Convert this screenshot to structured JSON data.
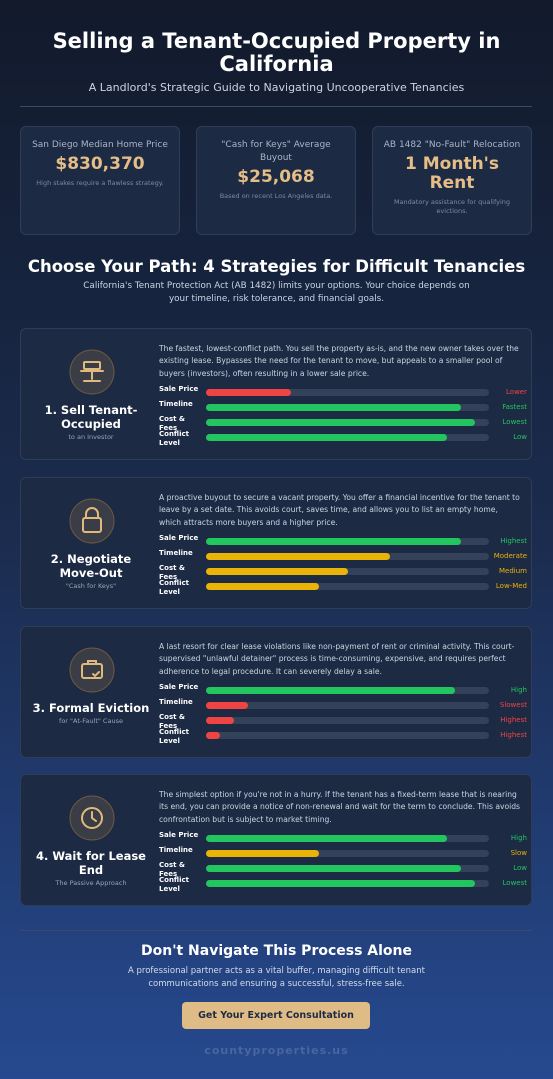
{
  "header": {
    "title": "Selling a Tenant-Occupied Property in California",
    "subtitle": "A Landlord's Strategic Guide to Navigating Uncooperative Tenancies"
  },
  "stats": [
    {
      "label": "San Diego Median Home Price",
      "value": "$830,370",
      "note": "High stakes require a flawless strategy."
    },
    {
      "label": "\"Cash for Keys\" Average Buyout",
      "value": "$25,068",
      "note": "Based on recent Los Angeles data."
    },
    {
      "label": "AB 1482 \"No-Fault\" Relocation",
      "value": "1 Month's Rent",
      "note": "Mandatory assistance for qualifying evictions."
    }
  ],
  "section": {
    "title": "Choose Your Path: 4 Strategies for Difficult Tenancies",
    "text": "California's Tenant Protection Act (AB 1482) limits your options. Your choice depends on your timeline, risk tolerance, and financial goals."
  },
  "strategies": [
    {
      "title": "1. Sell Tenant-Occupied",
      "subtitle": "to an Investor",
      "description": "The fastest, lowest-conflict path. You sell the property as-is, and the new owner takes over the existing lease. Bypasses the need for the tenant to move, but appeals to a smaller pool of buyers (investors), often resulting in a lower sale price.",
      "metrics": [
        {
          "name": "Sale Price",
          "rating": "Lower",
          "level": 30,
          "color": "#ef4444"
        },
        {
          "name": "Timeline",
          "rating": "Fastest",
          "level": 90,
          "color": "#22c55e"
        },
        {
          "name": "Cost & Fees",
          "rating": "Lowest",
          "level": 95,
          "color": "#22c55e"
        },
        {
          "name": "Conflict Level",
          "rating": "Low",
          "level": 85,
          "color": "#22c55e"
        }
      ]
    },
    {
      "title": "2. Negotiate Move-Out",
      "subtitle": "\"Cash for Keys\"",
      "description": "A proactive buyout to secure a vacant property. You offer a financial incentive for the tenant to leave by a set date. This avoids court, saves time, and allows you to list an empty home, which attracts more buyers and a higher price.",
      "metrics": [
        {
          "name": "Sale Price",
          "rating": "Highest",
          "level": 90,
          "color": "#22c55e"
        },
        {
          "name": "Timeline",
          "rating": "Moderate",
          "level": 65,
          "color": "#eab308"
        },
        {
          "name": "Cost & Fees",
          "rating": "Medium",
          "level": 50,
          "color": "#eab308"
        },
        {
          "name": "Conflict Level",
          "rating": "Low-Med",
          "level": 40,
          "color": "#eab308"
        }
      ]
    },
    {
      "title": "3. Formal Eviction",
      "subtitle": "for \"At-Fault\" Cause",
      "description": "A last resort for clear lease violations like non-payment of rent or criminal activity. This court-supervised \"unlawful detainer\" process is time-consuming, expensive, and requires perfect adherence to legal procedure. It can severely delay a sale.",
      "metrics": [
        {
          "name": "Sale Price",
          "rating": "High",
          "level": 88,
          "color": "#22c55e"
        },
        {
          "name": "Timeline",
          "rating": "Slowest",
          "level": 15,
          "color": "#ef4444"
        },
        {
          "name": "Cost & Fees",
          "rating": "Highest",
          "level": 10,
          "color": "#ef4444"
        },
        {
          "name": "Conflict Level",
          "rating": "Highest",
          "level": 5,
          "color": "#ef4444"
        }
      ]
    },
    {
      "title": "4. Wait for Lease End",
      "subtitle": "The Passive Approach",
      "description": "The simplest option if you're not in a hurry. If the tenant has a fixed-term lease that is nearing its end, you can provide a notice of non-renewal and wait for the term to conclude. This avoids confrontation but is subject to market timing.",
      "metrics": [
        {
          "name": "Sale Price",
          "rating": "High",
          "level": 85,
          "color": "#22c55e"
        },
        {
          "name": "Timeline",
          "rating": "Slow",
          "level": 40,
          "color": "#eab308"
        },
        {
          "name": "Cost & Fees",
          "rating": "Low",
          "level": 90,
          "color": "#22c55e"
        },
        {
          "name": "Conflict Level",
          "rating": "Lowest",
          "level": 95,
          "color": "#22c55e"
        }
      ]
    }
  ],
  "cta": {
    "title": "Don't Navigate This Process Alone",
    "text": "A professional partner acts as a vital buffer, managing difficult tenant communications and ensuring a successful, stress-free sale.",
    "button": "Get Your Expert Consultation"
  },
  "footer": "countyproperties.us"
}
